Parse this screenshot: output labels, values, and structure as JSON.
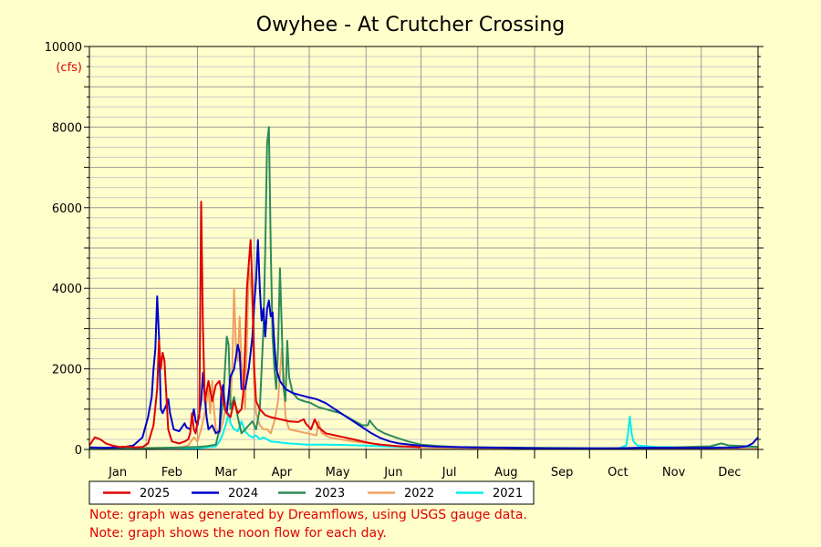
{
  "chart_data": {
    "type": "line",
    "title": "Owyhee - At Crutcher Crossing",
    "y_unit": "(cfs)",
    "ylim": [
      0,
      10000
    ],
    "y_ticks": [
      0,
      2000,
      4000,
      6000,
      8000,
      10000
    ],
    "xlim": [
      1,
      366
    ],
    "months": [
      "Jan",
      "Feb",
      "Mar",
      "Apr",
      "May",
      "Jun",
      "Jul",
      "Aug",
      "Sep",
      "Oct",
      "Nov",
      "Dec"
    ],
    "grid": true,
    "legend_position": "bottom",
    "series": [
      {
        "name": "2025",
        "color": "#e00000",
        "points": [
          [
            1,
            100
          ],
          [
            4,
            300
          ],
          [
            7,
            250
          ],
          [
            10,
            150
          ],
          [
            14,
            90
          ],
          [
            18,
            60
          ],
          [
            22,
            70
          ],
          [
            26,
            50
          ],
          [
            30,
            60
          ],
          [
            33,
            150
          ],
          [
            36,
            600
          ],
          [
            38,
            1500
          ],
          [
            39,
            2700
          ],
          [
            40,
            2000
          ],
          [
            41,
            2400
          ],
          [
            42,
            2200
          ],
          [
            44,
            500
          ],
          [
            46,
            200
          ],
          [
            50,
            150
          ],
          [
            53,
            200
          ],
          [
            55,
            250
          ],
          [
            56,
            400
          ],
          [
            57,
            900
          ],
          [
            58,
            500
          ],
          [
            59,
            400
          ],
          [
            60,
            700
          ],
          [
            61,
            800
          ],
          [
            62,
            6150
          ],
          [
            63,
            3000
          ],
          [
            64,
            1200
          ],
          [
            66,
            1700
          ],
          [
            68,
            1200
          ],
          [
            70,
            1600
          ],
          [
            72,
            1700
          ],
          [
            74,
            1200
          ],
          [
            76,
            900
          ],
          [
            78,
            800
          ],
          [
            80,
            1200
          ],
          [
            82,
            900
          ],
          [
            84,
            1000
          ],
          [
            85,
            1400
          ],
          [
            86,
            2500
          ],
          [
            87,
            4000
          ],
          [
            88,
            4600
          ],
          [
            89,
            5200
          ],
          [
            90,
            4000
          ],
          [
            91,
            2000
          ],
          [
            92,
            1200
          ],
          [
            94,
            1000
          ],
          [
            97,
            850
          ],
          [
            100,
            800
          ],
          [
            105,
            750
          ],
          [
            110,
            700
          ],
          [
            115,
            680
          ],
          [
            118,
            750
          ],
          [
            119,
            650
          ],
          [
            122,
            500
          ],
          [
            124,
            750
          ],
          [
            126,
            550
          ],
          [
            130,
            400
          ],
          [
            135,
            350
          ],
          [
            140,
            300
          ],
          [
            145,
            250
          ],
          [
            150,
            200
          ],
          [
            155,
            150
          ],
          [
            160,
            120
          ],
          [
            165,
            100
          ],
          [
            170,
            80
          ],
          [
            175,
            70
          ],
          [
            180,
            60
          ],
          [
            182,
            55
          ]
        ]
      },
      {
        "name": "2024",
        "color": "#0000cc",
        "points": [
          [
            1,
            50
          ],
          [
            10,
            40
          ],
          [
            20,
            60
          ],
          [
            25,
            100
          ],
          [
            30,
            300
          ],
          [
            33,
            800
          ],
          [
            35,
            1300
          ],
          [
            36,
            2000
          ],
          [
            37,
            2500
          ],
          [
            38,
            3800
          ],
          [
            39,
            2800
          ],
          [
            40,
            1000
          ],
          [
            41,
            900
          ],
          [
            43,
            1100
          ],
          [
            44,
            1250
          ],
          [
            45,
            900
          ],
          [
            47,
            500
          ],
          [
            50,
            450
          ],
          [
            53,
            650
          ],
          [
            54,
            550
          ],
          [
            56,
            500
          ],
          [
            58,
            1000
          ],
          [
            59,
            700
          ],
          [
            60,
            600
          ],
          [
            62,
            1200
          ],
          [
            63,
            1900
          ],
          [
            64,
            1300
          ],
          [
            65,
            800
          ],
          [
            66,
            500
          ],
          [
            68,
            600
          ],
          [
            70,
            400
          ],
          [
            72,
            450
          ],
          [
            73,
            1400
          ],
          [
            74,
            1600
          ],
          [
            75,
            1000
          ],
          [
            76,
            900
          ],
          [
            78,
            1800
          ],
          [
            80,
            2000
          ],
          [
            82,
            2600
          ],
          [
            83,
            2400
          ],
          [
            84,
            1500
          ],
          [
            86,
            1500
          ],
          [
            88,
            2000
          ],
          [
            90,
            2800
          ],
          [
            91,
            3600
          ],
          [
            92,
            4200
          ],
          [
            93,
            5200
          ],
          [
            94,
            4000
          ],
          [
            95,
            3200
          ],
          [
            96,
            3500
          ],
          [
            97,
            2800
          ],
          [
            98,
            3500
          ],
          [
            99,
            3700
          ],
          [
            100,
            3300
          ],
          [
            101,
            3400
          ],
          [
            102,
            2600
          ],
          [
            103,
            2000
          ],
          [
            105,
            1700
          ],
          [
            108,
            1500
          ],
          [
            112,
            1400
          ],
          [
            116,
            1350
          ],
          [
            120,
            1300
          ],
          [
            125,
            1250
          ],
          [
            130,
            1150
          ],
          [
            135,
            1000
          ],
          [
            140,
            850
          ],
          [
            145,
            700
          ],
          [
            150,
            550
          ],
          [
            155,
            400
          ],
          [
            160,
            280
          ],
          [
            165,
            200
          ],
          [
            170,
            150
          ],
          [
            180,
            100
          ],
          [
            190,
            70
          ],
          [
            200,
            60
          ],
          [
            210,
            50
          ],
          [
            230,
            40
          ],
          [
            250,
            30
          ],
          [
            270,
            30
          ],
          [
            290,
            30
          ],
          [
            300,
            40
          ],
          [
            320,
            40
          ],
          [
            340,
            40
          ],
          [
            355,
            50
          ],
          [
            360,
            80
          ],
          [
            363,
            150
          ],
          [
            365,
            250
          ],
          [
            366,
            300
          ]
        ]
      },
      {
        "name": "2023",
        "color": "#2e8b57",
        "points": [
          [
            1,
            40
          ],
          [
            20,
            30
          ],
          [
            30,
            30
          ],
          [
            40,
            40
          ],
          [
            50,
            50
          ],
          [
            60,
            60
          ],
          [
            65,
            80
          ],
          [
            70,
            120
          ],
          [
            72,
            500
          ],
          [
            74,
            1200
          ],
          [
            76,
            2800
          ],
          [
            77,
            2600
          ],
          [
            78,
            1000
          ],
          [
            80,
            1300
          ],
          [
            82,
            800
          ],
          [
            84,
            400
          ],
          [
            86,
            500
          ],
          [
            88,
            600
          ],
          [
            90,
            700
          ],
          [
            92,
            500
          ],
          [
            94,
            1000
          ],
          [
            96,
            3000
          ],
          [
            97,
            5000
          ],
          [
            98,
            7600
          ],
          [
            99,
            8000
          ],
          [
            100,
            5000
          ],
          [
            101,
            2800
          ],
          [
            102,
            2000
          ],
          [
            103,
            1500
          ],
          [
            104,
            2500
          ],
          [
            105,
            4500
          ],
          [
            106,
            3000
          ],
          [
            107,
            1500
          ],
          [
            108,
            1200
          ],
          [
            109,
            2700
          ],
          [
            110,
            1800
          ],
          [
            112,
            1400
          ],
          [
            115,
            1250
          ],
          [
            118,
            1200
          ],
          [
            122,
            1150
          ],
          [
            126,
            1050
          ],
          [
            130,
            1000
          ],
          [
            134,
            950
          ],
          [
            138,
            900
          ],
          [
            142,
            800
          ],
          [
            146,
            700
          ],
          [
            150,
            600
          ],
          [
            153,
            600
          ],
          [
            154,
            720
          ],
          [
            156,
            600
          ],
          [
            158,
            500
          ],
          [
            162,
            400
          ],
          [
            168,
            300
          ],
          [
            175,
            200
          ],
          [
            182,
            120
          ],
          [
            190,
            90
          ],
          [
            200,
            60
          ],
          [
            220,
            50
          ],
          [
            250,
            40
          ],
          [
            280,
            30
          ],
          [
            300,
            40
          ],
          [
            320,
            50
          ],
          [
            340,
            80
          ],
          [
            346,
            150
          ],
          [
            350,
            100
          ],
          [
            360,
            80
          ],
          [
            366,
            60
          ]
        ]
      },
      {
        "name": "2022",
        "color": "#f0a060",
        "points": [
          [
            1,
            50
          ],
          [
            20,
            40
          ],
          [
            40,
            40
          ],
          [
            50,
            40
          ],
          [
            55,
            100
          ],
          [
            58,
            300
          ],
          [
            60,
            200
          ],
          [
            62,
            500
          ],
          [
            64,
            900
          ],
          [
            66,
            1500
          ],
          [
            67,
            900
          ],
          [
            68,
            1700
          ],
          [
            69,
            1000
          ],
          [
            70,
            500
          ],
          [
            72,
            400
          ],
          [
            74,
            700
          ],
          [
            76,
            1200
          ],
          [
            78,
            1100
          ],
          [
            79,
            2000
          ],
          [
            80,
            4000
          ],
          [
            81,
            2500
          ],
          [
            82,
            2200
          ],
          [
            83,
            3300
          ],
          [
            84,
            2200
          ],
          [
            85,
            1600
          ],
          [
            86,
            1000
          ],
          [
            87,
            2700
          ],
          [
            88,
            4500
          ],
          [
            89,
            4200
          ],
          [
            90,
            3500
          ],
          [
            91,
            1500
          ],
          [
            92,
            900
          ],
          [
            94,
            600
          ],
          [
            96,
            500
          ],
          [
            98,
            500
          ],
          [
            100,
            400
          ],
          [
            102,
            700
          ],
          [
            104,
            1200
          ],
          [
            106,
            2500
          ],
          [
            107,
            1800
          ],
          [
            108,
            800
          ],
          [
            110,
            500
          ],
          [
            115,
            450
          ],
          [
            120,
            400
          ],
          [
            125,
            350
          ],
          [
            126,
            700
          ],
          [
            128,
            400
          ],
          [
            132,
            300
          ],
          [
            138,
            250
          ],
          [
            145,
            200
          ],
          [
            155,
            150
          ],
          [
            165,
            100
          ],
          [
            175,
            60
          ],
          [
            185,
            40
          ],
          [
            200,
            30
          ],
          [
            240,
            20
          ],
          [
            300,
            20
          ],
          [
            366,
            20
          ]
        ]
      },
      {
        "name": "2021",
        "color": "#00eeee",
        "points": [
          [
            1,
            30
          ],
          [
            20,
            20
          ],
          [
            40,
            20
          ],
          [
            50,
            20
          ],
          [
            60,
            30
          ],
          [
            70,
            80
          ],
          [
            72,
            200
          ],
          [
            74,
            400
          ],
          [
            76,
            700
          ],
          [
            77,
            900
          ],
          [
            78,
            650
          ],
          [
            80,
            500
          ],
          [
            82,
            450
          ],
          [
            84,
            700
          ],
          [
            86,
            450
          ],
          [
            88,
            350
          ],
          [
            90,
            300
          ],
          [
            92,
            350
          ],
          [
            94,
            250
          ],
          [
            96,
            300
          ],
          [
            98,
            250
          ],
          [
            100,
            200
          ],
          [
            110,
            150
          ],
          [
            120,
            120
          ],
          [
            130,
            120
          ],
          [
            140,
            110
          ],
          [
            150,
            100
          ],
          [
            160,
            80
          ],
          [
            170,
            60
          ],
          [
            190,
            40
          ],
          [
            220,
            30
          ],
          [
            260,
            25
          ],
          [
            290,
            25
          ],
          [
            294,
            100
          ],
          [
            295,
            400
          ],
          [
            296,
            820
          ],
          [
            297,
            400
          ],
          [
            298,
            200
          ],
          [
            300,
            100
          ],
          [
            310,
            60
          ],
          [
            330,
            50
          ],
          [
            350,
            50
          ],
          [
            366,
            50
          ]
        ]
      }
    ]
  },
  "notes": [
    "Note: graph was generated by Dreamflows, using USGS gauge data.",
    "Note: graph shows the noon flow for each day."
  ]
}
